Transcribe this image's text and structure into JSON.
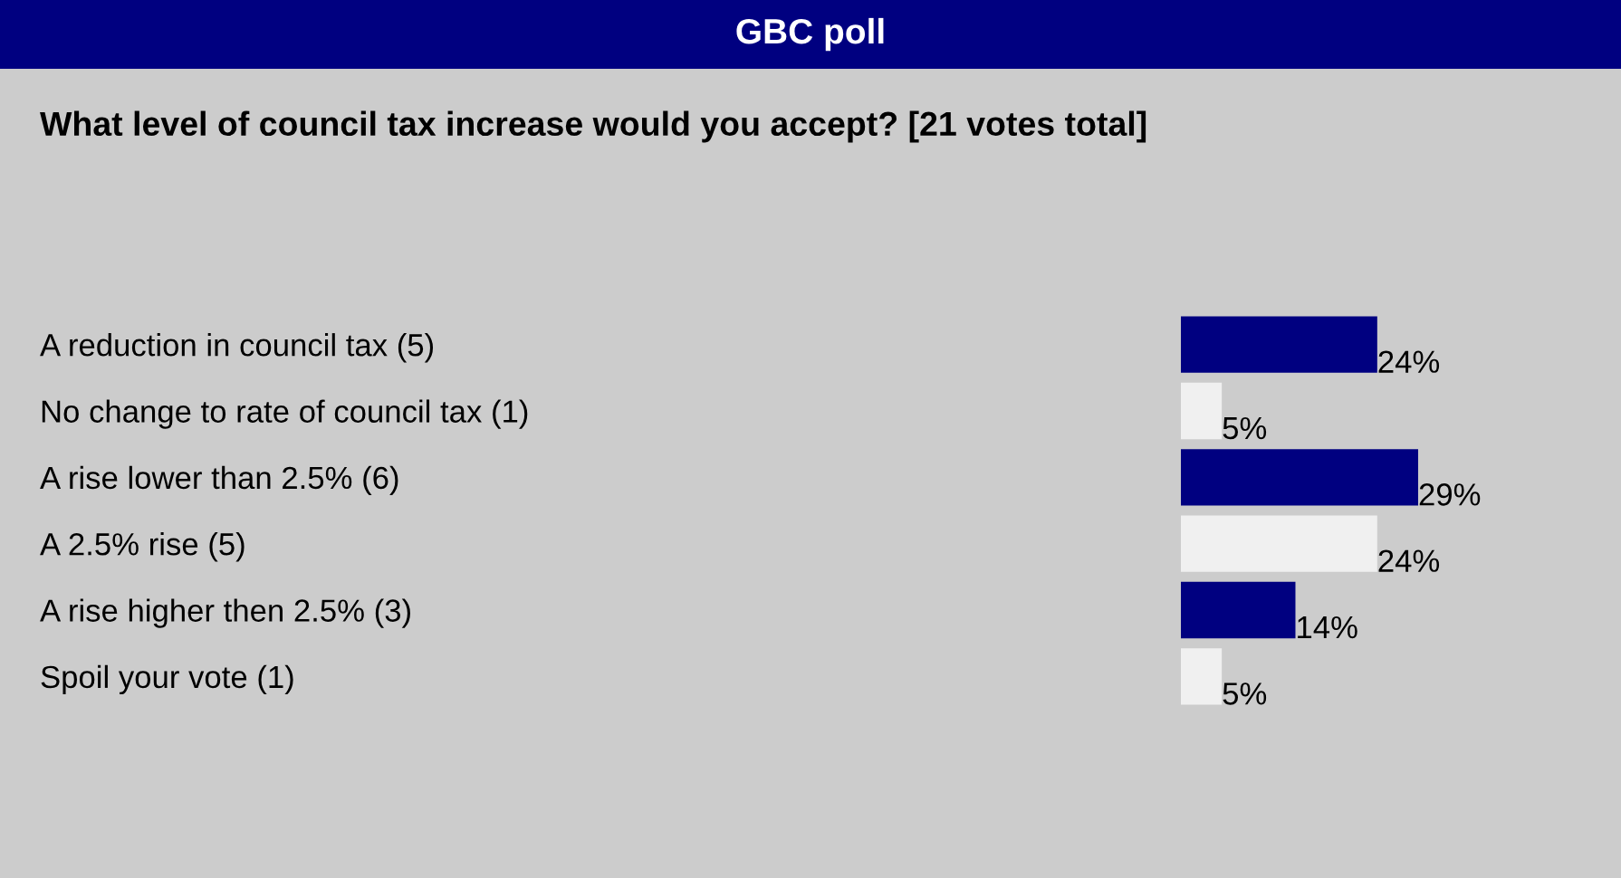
{
  "chart_data": {
    "type": "bar",
    "orientation": "horizontal",
    "title": "GBC poll",
    "subtitle": "What level of council tax increase would you accept? [21 votes total]",
    "categories": [
      "A reduction in council tax (5)",
      "No change to rate of council tax (1)",
      "A rise lower than 2.5% (6)",
      "A 2.5% rise (5)",
      "A rise higher then 2.5% (3)",
      "Spoil your vote (1)"
    ],
    "values": [
      24,
      5,
      29,
      24,
      14,
      5
    ],
    "colors": [
      "#000080",
      "#f0f0f0",
      "#000080",
      "#f0f0f0",
      "#000080",
      "#f0f0f0"
    ],
    "value_labels": [
      "24%",
      "5%",
      "29%",
      "24%",
      "14%",
      "5%"
    ],
    "grid": false,
    "legend": false
  }
}
